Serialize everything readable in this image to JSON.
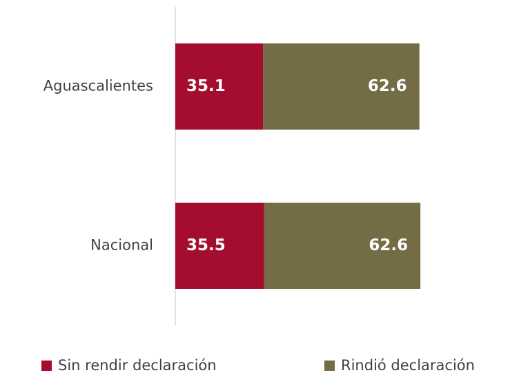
{
  "chart_data": {
    "type": "stacked-barh",
    "categories": [
      "Aguascalientes",
      "Nacional"
    ],
    "series": [
      {
        "name": "Sin rendir declaración",
        "color": "#a50d2e",
        "values": [
          35.1,
          35.5
        ]
      },
      {
        "name": "Rindió declaración",
        "color": "#736c44",
        "values": [
          62.6,
          62.6
        ]
      }
    ],
    "xlim": [
      0,
      100
    ]
  }
}
